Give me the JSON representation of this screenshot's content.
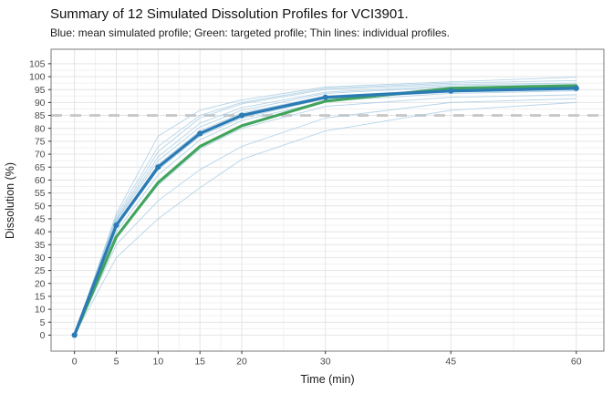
{
  "header": {
    "title": "Summary of 12 Simulated Dissolution Profiles for VCI3901.",
    "subtitle": "Blue: mean simulated profile; Green: targeted profile; Thin lines: individual profiles."
  },
  "chart_data": {
    "type": "line",
    "title": "Summary of 12 Simulated Dissolution Profiles for VCI3901.",
    "subtitle": "Blue: mean simulated profile; Green: targeted profile; Thin lines: individual profiles.",
    "xlabel": "Time (min)",
    "ylabel": "Dissolution (%)",
    "x": [
      0,
      5,
      10,
      15,
      20,
      30,
      45,
      60
    ],
    "x_ticks": [
      0,
      5,
      10,
      15,
      20,
      30,
      45,
      60
    ],
    "y_ticks": [
      0,
      5,
      10,
      15,
      20,
      25,
      30,
      35,
      40,
      45,
      50,
      55,
      60,
      65,
      70,
      75,
      80,
      85,
      90,
      95,
      100,
      105
    ],
    "xlim": [
      -2.8,
      63.3
    ],
    "ylim": [
      -6.2,
      110.6
    ],
    "grid": "major-and-minor",
    "legend_position": "none",
    "reference_line": {
      "y": 85,
      "style": "dashed",
      "color": "#c8c8c8",
      "width": 2.8
    },
    "series": [
      {
        "name": "Mean simulated profile",
        "role": "mean",
        "color": "#2b7bb5",
        "width": 3.3,
        "points": true,
        "values": [
          0,
          42.5,
          65,
          78,
          85,
          92,
          94.5,
          95.5
        ]
      },
      {
        "name": "Targeted profile",
        "role": "target",
        "color": "#41a45c",
        "width": 3.1,
        "points": false,
        "values": [
          0,
          38,
          59,
          73,
          81,
          90.5,
          95.5,
          96.5
        ]
      }
    ],
    "individual_style": {
      "color": "#a5cbe2",
      "width": 0.9,
      "opacity": 0.8
    },
    "individuals": [
      [
        0,
        47,
        77,
        87,
        91,
        96,
        98,
        99.8
      ],
      [
        0,
        46,
        73,
        85,
        90,
        95.5,
        97.5,
        98.5
      ],
      [
        0,
        45,
        71,
        84,
        89.5,
        95,
        97,
        97.5
      ],
      [
        0,
        44.5,
        69,
        82,
        88,
        94,
        96.5,
        97
      ],
      [
        0,
        44,
        67.5,
        80.5,
        87,
        93.5,
        96,
        96.5
      ],
      [
        0,
        43,
        66,
        79,
        86,
        92.5,
        95,
        96
      ],
      [
        0,
        42.5,
        65,
        78,
        85,
        92,
        94.5,
        95.5
      ],
      [
        0,
        42,
        64,
        77,
        84,
        91.5,
        94,
        95
      ],
      [
        0,
        40,
        62,
        75.5,
        83,
        90.5,
        93.5,
        94.5
      ],
      [
        0,
        38,
        58,
        72,
        80,
        88.5,
        92,
        93
      ],
      [
        0,
        35,
        52,
        64,
        73,
        84,
        90,
        91.5
      ],
      [
        0,
        30,
        45,
        57,
        68,
        79,
        87,
        90
      ]
    ],
    "style": {
      "panel_border": "#868686",
      "grid_major": "#e4e4e4",
      "grid_minor": "#f1f1f1",
      "tick_color": "#333333",
      "background": "#ffffff"
    }
  }
}
